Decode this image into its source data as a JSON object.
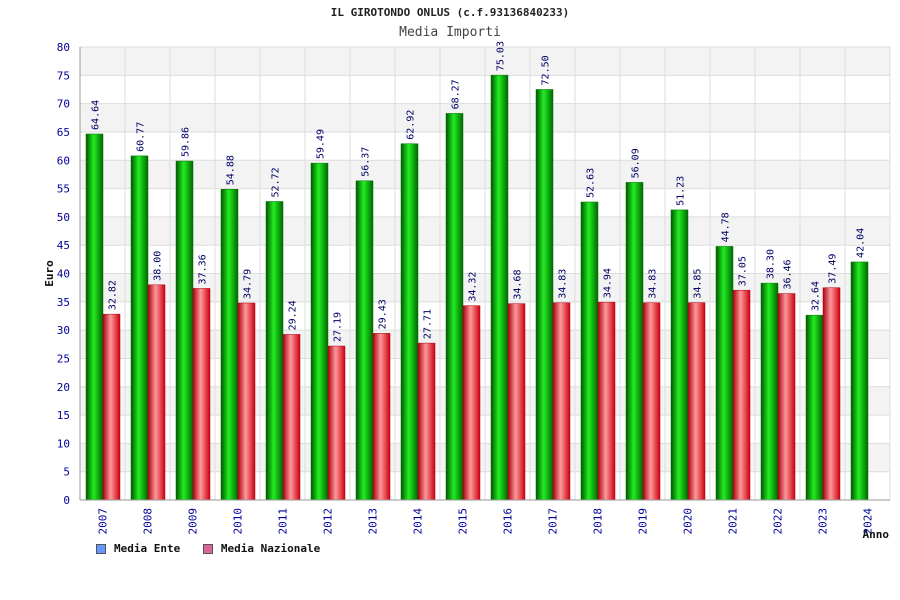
{
  "colors": {
    "ente": "#00bb00",
    "nazionale": "#ee2233",
    "legend_ente": "#6699ff",
    "legend_nazionale": "#dd6699",
    "axis_text": "#000099",
    "value_text": "#000066",
    "band": "#f3f3f3",
    "grid": "#dddddd"
  },
  "chart_data": {
    "type": "bar",
    "title": "IL GIROTONDO ONLUS (c.f.93136840233)",
    "subtitle": "Media Importi",
    "xlabel": "Anno",
    "ylabel": "Euro",
    "ylim": [
      0,
      80
    ],
    "yticks": [
      "0",
      "5",
      "10",
      "15",
      "20",
      "25",
      "30",
      "35",
      "40",
      "45",
      "50",
      "55",
      "60",
      "65",
      "70",
      "75",
      "80"
    ],
    "categories": [
      "2007",
      "2008",
      "2009",
      "2010",
      "2011",
      "2012",
      "2013",
      "2014",
      "2015",
      "2016",
      "2017",
      "2018",
      "2019",
      "2020",
      "2021",
      "2022",
      "2023",
      "2024"
    ],
    "series": [
      {
        "name": "Media Ente",
        "values": [
          64.64,
          60.77,
          59.86,
          54.88,
          52.72,
          59.49,
          56.37,
          62.92,
          68.27,
          75.03,
          72.5,
          52.63,
          56.09,
          51.23,
          44.78,
          38.3,
          32.64,
          42.04
        ],
        "labels": [
          "64.64",
          "60.77",
          "59.86",
          "54.88",
          "52.72",
          "59.49",
          "56.37",
          "62.92",
          "68.27",
          "75.03",
          "72.50",
          "52.63",
          "56.09",
          "51.23",
          "44.78",
          "38.30",
          "32.64",
          "42.04"
        ]
      },
      {
        "name": "Media Nazionale",
        "values": [
          32.82,
          38.0,
          37.36,
          34.79,
          29.24,
          27.19,
          29.43,
          27.71,
          34.32,
          34.68,
          34.83,
          34.94,
          34.83,
          34.85,
          37.05,
          36.46,
          37.49,
          null
        ],
        "labels": [
          "32.82",
          "38.00",
          "37.36",
          "34.79",
          "29.24",
          "27.19",
          "29.43",
          "27.71",
          "34.32",
          "34.68",
          "34.83",
          "34.94",
          "34.83",
          "34.85",
          "37.05",
          "36.46",
          "37.49",
          ""
        ]
      }
    ],
    "legend": [
      "Media Ente",
      "Media Nazionale"
    ]
  }
}
